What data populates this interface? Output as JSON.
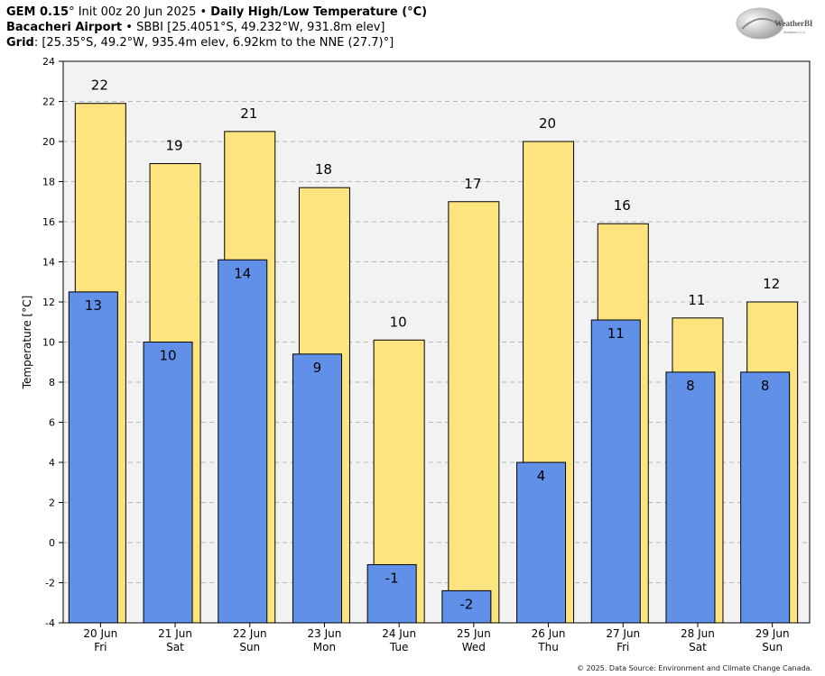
{
  "header": {
    "model": "GEM 0.15",
    "init": "° Init 00z 20 Jun 2025",
    "bullet": "•",
    "product": "Daily High/Low Temperature (°C)",
    "station_name": "Bacacheri Airport",
    "station_info": "• SBBI [25.4051°S, 49.232°W, 931.8m elev]",
    "grid_label": "Grid",
    "grid_info": ": [25.35°S, 49.2°W, 935.4m elev, 6.92km to the NNE (27.7)°]"
  },
  "logo": {
    "text_main": "WeatherBELL",
    "text_sub": "Analytics LLC"
  },
  "footer": "© 2025. Data Source: Environment and Climate Change Canada.",
  "colors": {
    "high": "#fde47e",
    "low": "#6090e8",
    "plot_bg": "#f2f2f2",
    "grid": "#b8b8b8"
  },
  "chart_data": {
    "type": "bar",
    "categories": [
      "20 Jun",
      "21 Jun",
      "22 Jun",
      "23 Jun",
      "24 Jun",
      "25 Jun",
      "26 Jun",
      "27 Jun",
      "28 Jun",
      "29 Jun"
    ],
    "day_labels": [
      "Fri",
      "Sat",
      "Sun",
      "Mon",
      "Tue",
      "Wed",
      "Thu",
      "Fri",
      "Sat",
      "Sun"
    ],
    "series": [
      {
        "values": [
          21.9,
          18.9,
          20.5,
          17.7,
          10.1,
          17.0,
          20.0,
          15.9,
          11.2,
          12.0
        ],
        "labels": [
          "22",
          "19",
          "21",
          "18",
          "10",
          "17",
          "20",
          "16",
          "11",
          "12"
        ]
      },
      {
        "values": [
          12.5,
          10.0,
          14.1,
          9.4,
          -1.1,
          -2.4,
          4.0,
          11.1,
          8.5,
          8.5
        ],
        "labels": [
          "13",
          "10",
          "14",
          "9",
          "-1",
          "-2",
          "4",
          "11",
          "8",
          "8"
        ]
      }
    ],
    "ylabel": "Temperature [°C]",
    "ylim": [
      -4,
      24
    ],
    "yticks": [
      -4,
      -2,
      0,
      2,
      4,
      6,
      8,
      10,
      12,
      14,
      16,
      18,
      20,
      22,
      24
    ],
    "grid": true
  }
}
